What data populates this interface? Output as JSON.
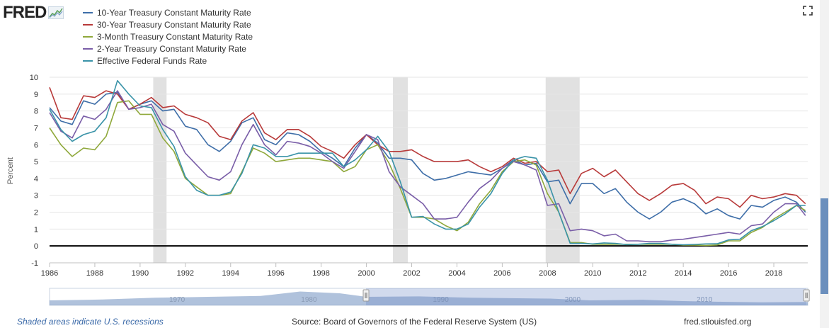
{
  "header": {
    "logo_text": "FRED",
    "logo_icon": "fred-graph-icon",
    "fullscreen_icon": "fullscreen-icon"
  },
  "legend": [
    {
      "label": "10-Year Treasury Constant Maturity Rate",
      "color": "#3e6ea8"
    },
    {
      "label": "30-Year Treasury Constant Maturity Rate",
      "color": "#b83a3a"
    },
    {
      "label": "3-Month Treasury Constant Maturity Rate",
      "color": "#8fa83b"
    },
    {
      "label": "2-Year Treasury Constant Maturity Rate",
      "color": "#7a5ea8"
    },
    {
      "label": "Effective Federal Funds Rate",
      "color": "#3a93a8"
    }
  ],
  "footer": {
    "recession_note": "Shaded areas indicate U.S. recessions",
    "source": "Source: Board of Governors of the Federal Reserve System (US)",
    "site": "fred.stlouisfed.org"
  },
  "navigator": {
    "labels": [
      "1970",
      "1980",
      "1990",
      "2000",
      "2010"
    ]
  },
  "chart_data": {
    "type": "line",
    "xlabel": "",
    "ylabel": "Percent",
    "xlim": [
      1986,
      2019.5
    ],
    "ylim": [
      -1,
      10
    ],
    "x_ticks": [
      "1986",
      "1988",
      "1990",
      "1992",
      "1994",
      "1996",
      "1998",
      "2000",
      "2002",
      "2004",
      "2006",
      "2008",
      "2010",
      "2012",
      "2014",
      "2016",
      "2018"
    ],
    "y_ticks": [
      "-1",
      "0",
      "1",
      "2",
      "3",
      "4",
      "5",
      "6",
      "7",
      "8",
      "9",
      "10"
    ],
    "grid": true,
    "legend_position": "top-left",
    "recessions": [
      [
        1990.58,
        1991.17
      ],
      [
        2001.17,
        2001.83
      ],
      [
        2007.92,
        2009.42
      ]
    ],
    "x": [
      1986,
      1986.5,
      1987,
      1987.5,
      1988,
      1988.5,
      1989,
      1989.5,
      1990,
      1990.5,
      1991,
      1991.5,
      1992,
      1992.5,
      1993,
      1993.5,
      1994,
      1994.5,
      1995,
      1995.5,
      1996,
      1996.5,
      1997,
      1997.5,
      1998,
      1998.5,
      1999,
      1999.5,
      2000,
      2000.5,
      2001,
      2001.5,
      2002,
      2002.5,
      2003,
      2003.5,
      2004,
      2004.5,
      2005,
      2005.5,
      2006,
      2006.5,
      2007,
      2007.5,
      2008,
      2008.5,
      2009,
      2009.5,
      2010,
      2010.5,
      2011,
      2011.5,
      2012,
      2012.5,
      2013,
      2013.5,
      2014,
      2014.5,
      2015,
      2015.5,
      2016,
      2016.5,
      2017,
      2017.5,
      2018,
      2018.5,
      2019,
      2019.4
    ],
    "series": [
      {
        "name": "10-Year Treasury Constant Maturity Rate",
        "color": "#3e6ea8",
        "values": [
          8.2,
          7.4,
          7.2,
          8.6,
          8.4,
          9.0,
          9.1,
          8.1,
          8.4,
          8.6,
          8.0,
          8.1,
          7.1,
          6.9,
          6.0,
          5.6,
          6.2,
          7.3,
          7.6,
          6.3,
          6.0,
          6.7,
          6.6,
          6.2,
          5.6,
          5.2,
          4.7,
          5.8,
          6.6,
          6.1,
          5.2,
          5.2,
          5.1,
          4.3,
          3.9,
          4.0,
          4.2,
          4.4,
          4.3,
          4.2,
          4.6,
          5.1,
          4.8,
          4.9,
          3.8,
          3.9,
          2.5,
          3.7,
          3.7,
          3.1,
          3.4,
          2.6,
          2.0,
          1.6,
          2.0,
          2.6,
          2.8,
          2.5,
          1.9,
          2.2,
          1.8,
          1.6,
          2.4,
          2.3,
          2.7,
          2.9,
          2.6,
          2.0
        ]
      },
      {
        "name": "30-Year Treasury Constant Maturity Rate",
        "color": "#b83a3a",
        "values": [
          9.4,
          7.6,
          7.5,
          8.9,
          8.8,
          9.2,
          9.0,
          8.1,
          8.4,
          8.8,
          8.2,
          8.3,
          7.8,
          7.6,
          7.3,
          6.5,
          6.3,
          7.4,
          7.9,
          6.7,
          6.3,
          6.9,
          6.9,
          6.5,
          5.9,
          5.6,
          5.2,
          6.0,
          6.6,
          6.0,
          5.6,
          5.6,
          5.7,
          5.3,
          5.0,
          5.0,
          5.0,
          5.1,
          4.7,
          4.4,
          4.7,
          5.2,
          4.9,
          5.0,
          4.4,
          4.5,
          3.1,
          4.3,
          4.6,
          4.1,
          4.5,
          3.8,
          3.1,
          2.7,
          3.1,
          3.6,
          3.7,
          3.3,
          2.5,
          2.9,
          2.8,
          2.3,
          3.0,
          2.8,
          2.9,
          3.1,
          3.0,
          2.5
        ]
      },
      {
        "name": "3-Month Treasury Constant Maturity Rate",
        "color": "#8fa83b",
        "values": [
          7.0,
          6.0,
          5.3,
          5.8,
          5.7,
          6.5,
          8.5,
          8.6,
          7.8,
          7.8,
          6.4,
          5.6,
          4.0,
          3.5,
          3.0,
          3.0,
          3.1,
          4.4,
          5.8,
          5.5,
          5.0,
          5.1,
          5.2,
          5.2,
          5.1,
          5.0,
          4.4,
          4.7,
          5.7,
          6.0,
          4.9,
          3.4,
          1.7,
          1.7,
          1.6,
          1.2,
          0.9,
          1.4,
          2.5,
          3.3,
          4.4,
          5.0,
          5.1,
          4.8,
          3.1,
          2.0,
          0.2,
          0.2,
          0.1,
          0.1,
          0.1,
          0.1,
          0.1,
          0.1,
          0.1,
          0.1,
          0.05,
          0.05,
          0.03,
          0.06,
          0.3,
          0.3,
          0.8,
          1.1,
          1.6,
          2.0,
          2.4,
          2.1
        ]
      },
      {
        "name": "2-Year Treasury Constant Maturity Rate",
        "color": "#7a5ea8",
        "values": [
          7.9,
          6.8,
          6.4,
          7.7,
          7.5,
          8.1,
          9.2,
          8.1,
          8.2,
          8.4,
          7.2,
          6.8,
          5.5,
          4.8,
          4.1,
          3.9,
          4.4,
          6.0,
          7.2,
          6.0,
          5.4,
          6.2,
          6.1,
          5.9,
          5.5,
          5.0,
          4.6,
          5.6,
          6.6,
          6.3,
          4.4,
          3.5,
          3.0,
          2.5,
          1.6,
          1.6,
          1.7,
          2.6,
          3.4,
          3.9,
          4.6,
          5.0,
          4.8,
          4.5,
          2.4,
          2.5,
          0.9,
          1.0,
          0.9,
          0.6,
          0.7,
          0.3,
          0.3,
          0.25,
          0.25,
          0.35,
          0.4,
          0.5,
          0.6,
          0.7,
          0.8,
          0.7,
          1.2,
          1.3,
          2.0,
          2.5,
          2.5,
          1.8
        ]
      },
      {
        "name": "Effective Federal Funds Rate",
        "color": "#3a93a8",
        "values": [
          8.1,
          6.9,
          6.2,
          6.6,
          6.8,
          7.6,
          9.8,
          9.0,
          8.3,
          8.2,
          6.9,
          5.9,
          4.1,
          3.3,
          3.0,
          3.0,
          3.2,
          4.3,
          6.0,
          5.8,
          5.3,
          5.3,
          5.5,
          5.5,
          5.5,
          5.5,
          4.7,
          5.1,
          5.7,
          6.5,
          5.6,
          3.8,
          1.7,
          1.75,
          1.3,
          1.0,
          1.0,
          1.3,
          2.3,
          3.1,
          4.3,
          5.1,
          5.3,
          5.2,
          3.9,
          2.0,
          0.16,
          0.15,
          0.12,
          0.18,
          0.15,
          0.08,
          0.1,
          0.15,
          0.15,
          0.1,
          0.07,
          0.09,
          0.12,
          0.13,
          0.36,
          0.4,
          0.9,
          1.15,
          1.5,
          1.9,
          2.4,
          2.4
        ]
      }
    ]
  }
}
